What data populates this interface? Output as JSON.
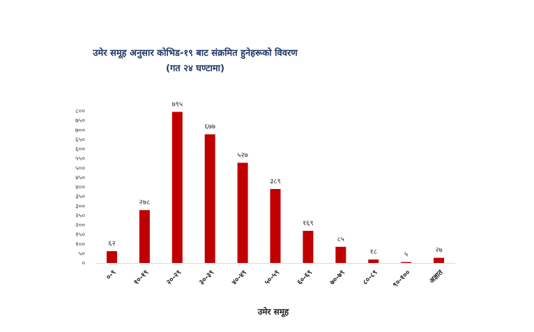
{
  "chart_data": {
    "type": "bar",
    "title": "उमेर समूह अनुसार कोभिड-१९ बाट संक्रमित हुनेहरूको विवरण",
    "subtitle": "(गत २४ घण्टामा)",
    "xlabel": "उमेर समूह",
    "ylabel": "",
    "categories": [
      "०-९",
      "१०-१९",
      "२०-२९",
      "३०-३९",
      "४०-४९",
      "५०-५९",
      "६०-६९",
      "७०-७९",
      "८०-८९",
      "९०-१००",
      "अज्ञात"
    ],
    "values": [
      62,
      278,
      795,
      677,
      527,
      389,
      169,
      85,
      18,
      5,
      27
    ],
    "value_labels": [
      "६२",
      "२७८",
      "७९५",
      "६७७",
      "५२७",
      "३८९",
      "१६९",
      "८५",
      "१८",
      "५",
      "२७"
    ],
    "ylim": [
      0,
      800
    ],
    "yticks": [
      0,
      50,
      100,
      150,
      200,
      250,
      300,
      350,
      400,
      450,
      500,
      550,
      600,
      650,
      700,
      750,
      800
    ],
    "ytick_labels": [
      "०",
      "५०",
      "१००",
      "१५०",
      "२००",
      "२५०",
      "३००",
      "३५०",
      "४००",
      "४५०",
      "५००",
      "५५०",
      "६००",
      "६५०",
      "७००",
      "७५०",
      "८००"
    ],
    "grid": false,
    "legend": "none",
    "bar_color": "#c00000",
    "title_color": "#1f3864"
  }
}
